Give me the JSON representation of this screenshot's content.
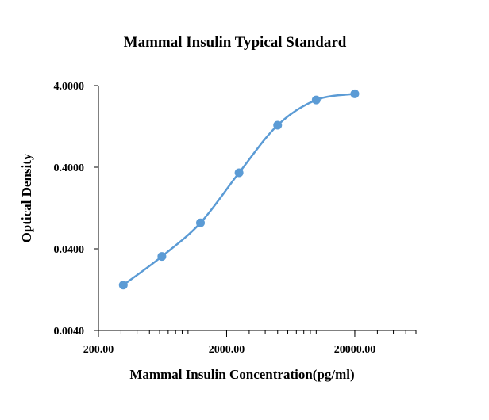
{
  "chart_data": {
    "type": "scatter",
    "title": "Mammal Insulin Typical Standard",
    "xlabel": "Mammal Insulin  Concentration(pg/ml)",
    "ylabel": "Optical Density",
    "x_scale": "log",
    "y_scale": "log",
    "xlim": [
      200,
      60000
    ],
    "ylim": [
      0.004,
      4.0
    ],
    "x_ticks": [
      "200.00",
      "2000.00",
      "20000.00"
    ],
    "y_ticks": [
      "0.0040",
      "0.0400",
      "0.4000",
      "4.0000"
    ],
    "grid": false,
    "legend": "none",
    "series": [
      {
        "x": [
          312.5,
          625,
          1250,
          2500,
          5000,
          10000,
          20000
        ],
        "y": [
          0.0144,
          0.0323,
          0.0832,
          0.342,
          1.308,
          2.67,
          3.17
        ],
        "color": "#5b9bd5",
        "line": "smooth",
        "marker": "circle"
      }
    ]
  }
}
